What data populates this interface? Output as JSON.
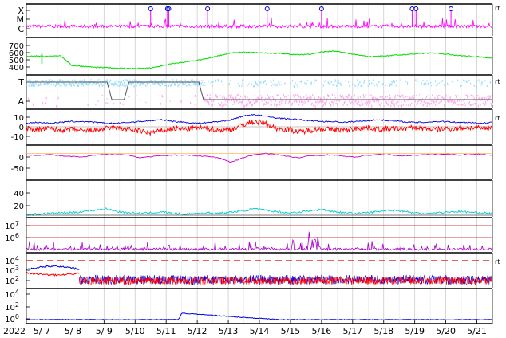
{
  "chart_data": {
    "type": "line",
    "title": "",
    "year_label": "2022",
    "x_ticks": [
      "5/ 7",
      "5/ 8",
      "5/ 9",
      "5/10",
      "5/11",
      "5/12",
      "5/13",
      "5/14",
      "5/15",
      "5/16",
      "5/17",
      "5/18",
      "5/19",
      "5/20",
      "5/21"
    ],
    "x_range": [
      "2022-05-06T12:00",
      "2022-05-21T12:00"
    ],
    "right_marker": "rt",
    "panels": [
      {
        "id": "xray_class",
        "tick_labels": [
          "X",
          "M",
          "C"
        ],
        "series": [
          {
            "color": "#ff00ff",
            "baseline": "C",
            "flare_markers": [
              "5/10 12:00",
              "5/11 01:00",
              "5/11 02:00",
              "5/12 08:00",
              "5/14 06:00",
              "5/16 00:00",
              "5/18 22:00",
              "5/19 01:00",
              "5/20 04:00"
            ]
          }
        ]
      },
      {
        "id": "solar_wind_speed",
        "tick_labels": [
          "700",
          "600",
          "500",
          "400"
        ],
        "ylim": [
          350,
          750
        ],
        "series": [
          {
            "color": "#00dd00",
            "values": [
              550,
              555,
              545,
              560,
              420,
              410,
              395,
              390,
              385,
              380,
              380,
              385,
              420,
              450,
              470,
              490,
              520,
              560,
              595,
              605,
              600,
              595,
              590,
              580,
              570,
              580,
              610,
              620,
              600,
              570,
              545,
              550,
              560,
              570,
              580,
              590,
              595,
              580,
              560,
              550,
              540,
              525
            ]
          }
        ]
      },
      {
        "id": "polarity",
        "tick_labels": [
          "T",
          "A"
        ],
        "series": [
          {
            "color": "#99ddff",
            "name": ""
          },
          {
            "color": "#ffaaee",
            "name": ""
          },
          {
            "color": "#555555",
            "name": ""
          }
        ]
      },
      {
        "id": "imf_b",
        "tick_labels": [
          "10",
          "0",
          "-10"
        ],
        "ylim": [
          -20,
          20
        ],
        "series": [
          {
            "color": "#0000dd",
            "values": [
              4,
              5,
              4,
              5,
              6,
              6,
              5,
              4,
              4,
              5,
              6,
              7,
              8,
              6,
              5,
              4,
              5,
              6,
              8,
              12,
              14,
              12,
              10,
              9,
              8,
              7,
              6,
              6,
              5,
              6,
              7,
              8,
              7,
              6,
              5,
              5,
              6,
              6,
              5,
              5,
              4,
              5
            ]
          },
          {
            "color": "#ff0000",
            "values": [
              -2,
              -3,
              -2,
              -4,
              -3,
              -5,
              -4,
              -2,
              -1,
              -3,
              -5,
              -7,
              -4,
              -2,
              -3,
              -1,
              -2,
              -4,
              -3,
              2,
              6,
              4,
              -2,
              -3,
              -6,
              -4,
              -2,
              -3,
              -4,
              -2,
              -1,
              -3,
              -2,
              -2,
              -1,
              -2,
              -3,
              -2,
              -2,
              -1,
              -2,
              -1
            ]
          }
        ]
      },
      {
        "id": "bz_trend",
        "tick_labels": [
          "0",
          "-50"
        ],
        "ylim": [
          -80,
          25
        ],
        "series": [
          {
            "color": "#cc00cc",
            "values": [
              -5,
              -6,
              -4,
              -8,
              -10,
              -12,
              -6,
              -4,
              -3,
              -6,
              -14,
              -10,
              -8,
              -6,
              -5,
              -8,
              -10,
              -15,
              -28,
              -15,
              -5,
              0,
              -4,
              -10,
              -14,
              -8,
              -6,
              -5,
              -10,
              -12,
              -6,
              -4,
              -5,
              -8,
              -6,
              -5,
              -4,
              -3,
              -5,
              -4,
              -3,
              -6
            ]
          }
        ]
      },
      {
        "id": "kp_like",
        "tick_labels": [
          "40",
          "20"
        ],
        "ylim": [
          0,
          55
        ],
        "series": [
          {
            "color": "#00cccc",
            "values": [
              3,
              4,
              5,
              6,
              6,
              8,
              10,
              12,
              8,
              6,
              5,
              6,
              7,
              5,
              4,
              5,
              6,
              5,
              7,
              9,
              12,
              10,
              8,
              6,
              7,
              9,
              11,
              8,
              6,
              5,
              6,
              8,
              10,
              9,
              6,
              5,
              6,
              7,
              8,
              7,
              6,
              5
            ]
          }
        ]
      },
      {
        "id": "proton_flux",
        "tick_labels": [
          "10^7",
          "10^6"
        ],
        "threshold_lines": [
          "10^7",
          "10^6"
        ],
        "series": [
          {
            "color": "#aa00cc"
          }
        ]
      },
      {
        "id": "electron_flux",
        "tick_labels": [
          "10^4",
          "10^3",
          "10^2"
        ],
        "threshold_label": "10^4",
        "series": [
          {
            "color": "#0000dd",
            "name": ""
          },
          {
            "color": "#ff0000",
            "name": ""
          }
        ]
      },
      {
        "id": "high_energy_flux",
        "tick_labels": [
          "10^4",
          "10^2",
          "10^0"
        ],
        "series": [
          {
            "color": "#0000dd",
            "spike": "5/11 12:00"
          }
        ]
      }
    ]
  }
}
